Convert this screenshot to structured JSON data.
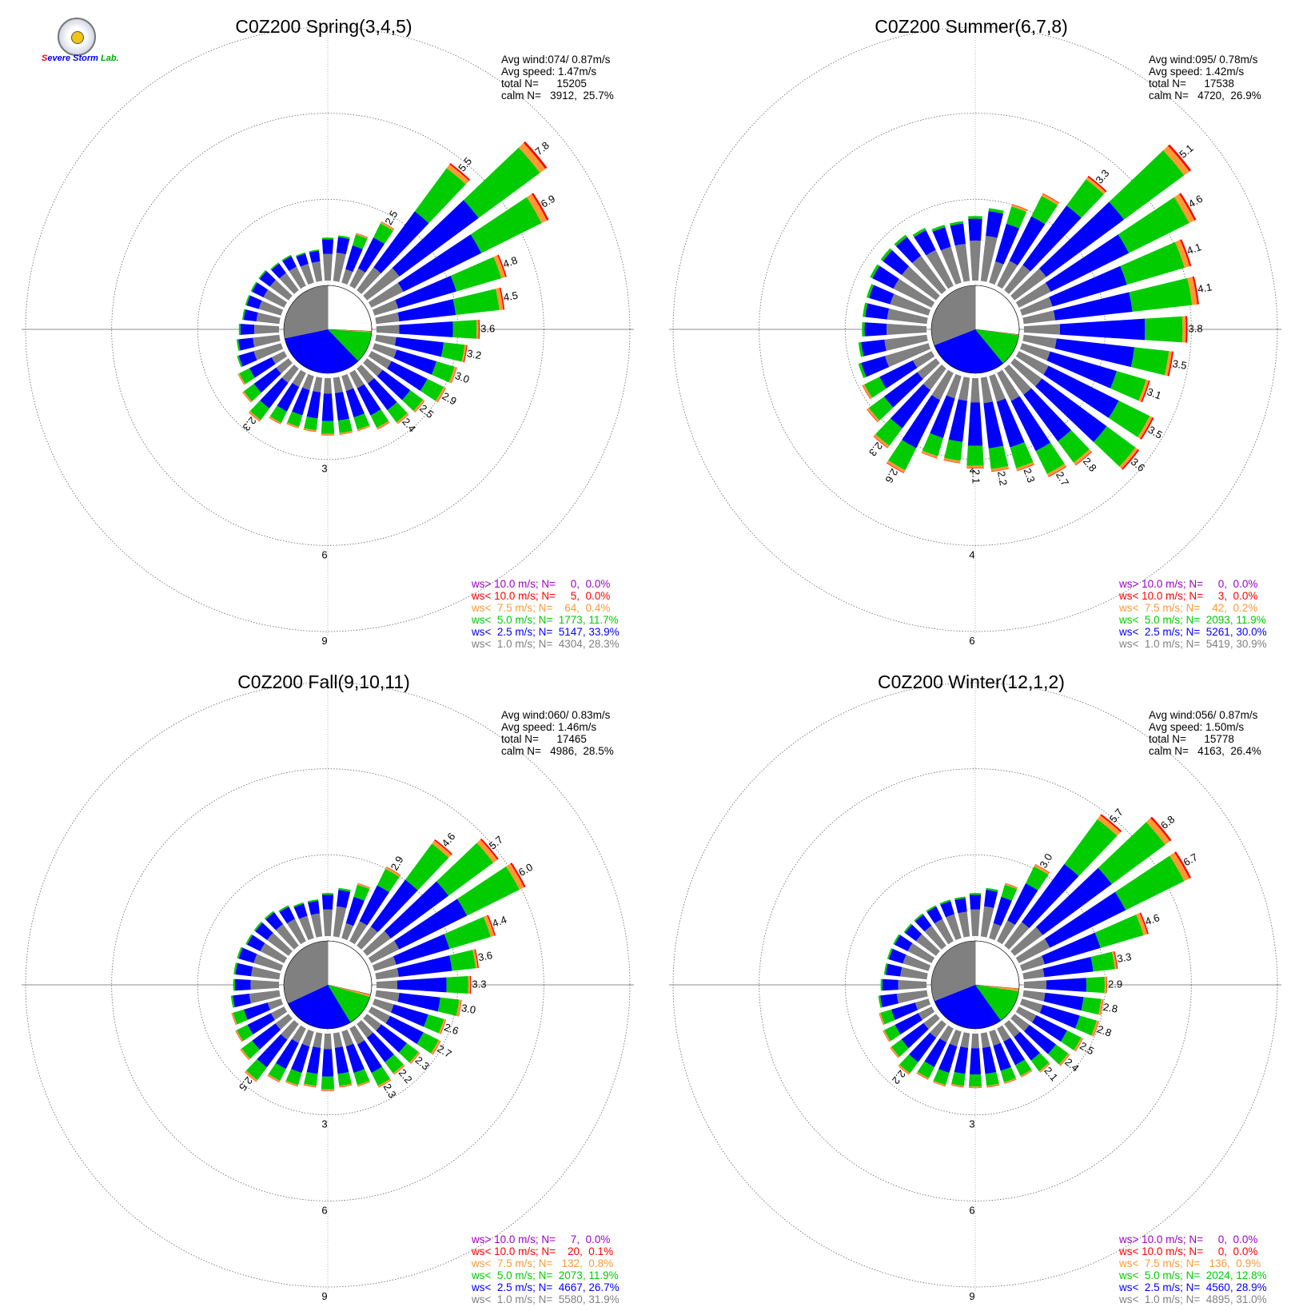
{
  "logo": {
    "text": "Severe Storm Lab."
  },
  "colors": {
    "gray": "#808080",
    "blue": "#0000ff",
    "green": "#00cc00",
    "orange": "#ff9933",
    "red": "#ff0000",
    "purple": "#a000c8",
    "calm": "#ffffff"
  },
  "chart_data": [
    {
      "type": "wind-rose",
      "title": "C0Z200 Spring(3,4,5)",
      "radial_max": 9,
      "rings": [
        3,
        6,
        9
      ],
      "ring_labels": [
        "3",
        "6",
        "9"
      ],
      "stats": [
        "Avg wind:074/ 0.87m/s",
        "Avg speed: 1.47m/s",
        "total N=      15205",
        "calm N=   3912,  25.7%"
      ],
      "legend": [
        {
          "text": "ws> 10.0 m/s; N=     0,  0.0%",
          "color": "#a000c8"
        },
        {
          "text": "ws< 10.0 m/s; N=     5,  0.0%",
          "color": "#ff0000"
        },
        {
          "text": "ws<  7.5 m/s; N=    64,  0.4%",
          "color": "#ff9933"
        },
        {
          "text": "ws<  5.0 m/s; N=  1773, 11.7%",
          "color": "#00cc00"
        },
        {
          "text": "ws<  2.5 m/s; N=  5147, 33.9%",
          "color": "#0000ff"
        },
        {
          "text": "ws<  1.0 m/s; N=  4304, 28.3%",
          "color": "#808080"
        }
      ],
      "calm_pie": {
        "gray": 28.3,
        "blue": 33.9,
        "green": 11.7,
        "orange": 0.4,
        "red": 0.03,
        "white": 25.7
      },
      "directions_deg": [
        0,
        10,
        20,
        30,
        40,
        50,
        60,
        70,
        80,
        90,
        100,
        110,
        120,
        130,
        140,
        150,
        160,
        170,
        180,
        190,
        200,
        210,
        220,
        230,
        240,
        250,
        260,
        270,
        280,
        290,
        300,
        310,
        320,
        330,
        340,
        350
      ],
      "totals": [
        1.5,
        1.6,
        1.8,
        2.5,
        5.5,
        7.8,
        6.9,
        4.8,
        4.5,
        3.6,
        3.2,
        3.0,
        2.9,
        2.5,
        2.4,
        2.2,
        2.0,
        2.0,
        2.0,
        1.9,
        1.9,
        2.0,
        2.3,
        2.0,
        1.8,
        1.6,
        1.5,
        1.4,
        1.3,
        1.3,
        1.3,
        1.3,
        1.2,
        1.2,
        1.1,
        1.1
      ],
      "bar_labels": {
        "4": "5.5",
        "5": "7.8",
        "6": "6.9",
        "7": "4.8",
        "8": "4.5",
        "9": "3.6",
        "10": "3.2",
        "11": "3.0",
        "12": "2.9",
        "13": "2.5",
        "14": "2.4",
        "3": "2.5",
        "22": "2.3"
      }
    },
    {
      "type": "wind-rose",
      "title": "C0Z200 Summer(6,7,8)",
      "radial_max": 6,
      "rings": [
        2,
        4,
        6
      ],
      "ring_labels": [
        "2",
        "4",
        "6"
      ],
      "stats": [
        "Avg wind:095/ 0.78m/s",
        "Avg speed: 1.42m/s",
        "total N=      17538",
        "calm N=   4720,  26.9%"
      ],
      "legend": [
        {
          "text": "ws> 10.0 m/s; N=     0,  0.0%",
          "color": "#a000c8"
        },
        {
          "text": "ws< 10.0 m/s; N=     3,  0.0%",
          "color": "#ff0000"
        },
        {
          "text": "ws<  7.5 m/s; N=    42,  0.2%",
          "color": "#ff9933"
        },
        {
          "text": "ws<  5.0 m/s; N=  2093, 11.9%",
          "color": "#00cc00"
        },
        {
          "text": "ws<  2.5 m/s; N=  5261, 30.0%",
          "color": "#0000ff"
        },
        {
          "text": "ws<  1.0 m/s; N=  5419, 30.9%",
          "color": "#808080"
        }
      ],
      "calm_pie": {
        "gray": 30.9,
        "blue": 30.0,
        "green": 11.9,
        "orange": 0.2,
        "red": 0.02,
        "white": 26.9
      },
      "directions_deg": [
        0,
        10,
        20,
        30,
        40,
        50,
        60,
        70,
        80,
        90,
        100,
        110,
        120,
        130,
        140,
        150,
        160,
        170,
        180,
        190,
        200,
        210,
        220,
        230,
        240,
        250,
        260,
        270,
        280,
        290,
        300,
        310,
        320,
        330,
        340,
        350
      ],
      "totals": [
        1.5,
        1.7,
        1.9,
        2.4,
        3.3,
        5.1,
        4.6,
        4.1,
        4.1,
        3.8,
        3.5,
        3.1,
        3.5,
        3.6,
        2.8,
        2.7,
        2.3,
        2.2,
        2.1,
        2.0,
        2.0,
        2.6,
        2.3,
        2.0,
        1.8,
        1.7,
        1.6,
        1.5,
        1.5,
        1.5,
        1.6,
        1.6,
        1.6,
        1.5,
        1.4,
        1.4
      ],
      "bar_labels": {
        "4": "3.3",
        "5": "5.1",
        "6": "4.6",
        "7": "4.1",
        "8": "4.1",
        "9": "3.8",
        "10": "3.5",
        "11": "3.1",
        "12": "3.5",
        "13": "3.6",
        "14": "2.8",
        "15": "2.7",
        "16": "2.3",
        "17": "2.2",
        "18": "2.1",
        "21": "2.6",
        "22": "2.3"
      }
    },
    {
      "type": "wind-rose",
      "title": "C0Z200 Fall(9,10,11)",
      "radial_max": 9,
      "rings": [
        3,
        6,
        9
      ],
      "ring_labels": [
        "3",
        "6",
        "9"
      ],
      "stats": [
        "Avg wind:060/ 0.83m/s",
        "Avg speed: 1.46m/s",
        "total N=      17465",
        "calm N=   4986,  28.5%"
      ],
      "legend": [
        {
          "text": "ws> 10.0 m/s; N=     7,  0.0%",
          "color": "#a000c8"
        },
        {
          "text": "ws< 10.0 m/s; N=    20,  0.1%",
          "color": "#ff0000"
        },
        {
          "text": "ws<  7.5 m/s; N=   132,  0.8%",
          "color": "#ff9933"
        },
        {
          "text": "ws<  5.0 m/s; N=  2073, 11.9%",
          "color": "#00cc00"
        },
        {
          "text": "ws<  2.5 m/s; N=  4667, 26.7%",
          "color": "#0000ff"
        },
        {
          "text": "ws<  1.0 m/s; N=  5580, 31.9%",
          "color": "#808080"
        }
      ],
      "calm_pie": {
        "gray": 31.9,
        "blue": 26.7,
        "green": 11.9,
        "orange": 0.8,
        "red": 0.1,
        "white": 28.5
      },
      "directions_deg": [
        0,
        10,
        20,
        30,
        40,
        50,
        60,
        70,
        80,
        90,
        100,
        110,
        120,
        130,
        140,
        150,
        160,
        170,
        180,
        190,
        200,
        210,
        220,
        230,
        240,
        250,
        260,
        270,
        280,
        290,
        300,
        310,
        320,
        330,
        340,
        350
      ],
      "totals": [
        1.5,
        1.7,
        2.0,
        2.9,
        4.6,
        5.7,
        6.0,
        4.4,
        3.6,
        3.3,
        3.0,
        2.6,
        2.7,
        2.3,
        2.2,
        2.3,
        2.0,
        1.9,
        2.0,
        1.9,
        2.0,
        2.1,
        2.5,
        2.1,
        1.9,
        1.8,
        1.7,
        1.6,
        1.6,
        1.6,
        1.5,
        1.5,
        1.5,
        1.4,
        1.3,
        1.3
      ],
      "bar_labels": {
        "3": "2.9",
        "4": "4.6",
        "5": "5.7",
        "6": "6.0",
        "7": "4.4",
        "8": "3.6",
        "9": "3.3",
        "10": "3.0",
        "11": "2.6",
        "12": "2.7",
        "13": "2.3",
        "14": "2.2",
        "15": "2.3",
        "22": "2.5"
      }
    },
    {
      "type": "wind-rose",
      "title": "C0Z200 Winter(12,1,2)",
      "radial_max": 9,
      "rings": [
        3,
        6,
        9
      ],
      "ring_labels": [
        "3",
        "6",
        "9"
      ],
      "stats": [
        "Avg wind:056/ 0.87m/s",
        "Avg speed: 1.50m/s",
        "total N=      15778",
        "calm N=   4163,  26.4%"
      ],
      "legend": [
        {
          "text": "ws> 10.0 m/s; N=     0,  0.0%",
          "color": "#a000c8"
        },
        {
          "text": "ws< 10.0 m/s; N=     0,  0.0%",
          "color": "#ff0000"
        },
        {
          "text": "ws<  7.5 m/s; N=   136,  0.9%",
          "color": "#ff9933"
        },
        {
          "text": "ws<  5.0 m/s; N=  2024, 12.8%",
          "color": "#00cc00"
        },
        {
          "text": "ws<  2.5 m/s; N=  4560, 28.9%",
          "color": "#0000ff"
        },
        {
          "text": "ws<  1.0 m/s; N=  4895, 31.0%",
          "color": "#808080"
        }
      ],
      "calm_pie": {
        "gray": 31.0,
        "blue": 28.9,
        "green": 12.8,
        "orange": 0.9,
        "red": 0.02,
        "white": 26.4
      },
      "directions_deg": [
        0,
        10,
        20,
        30,
        40,
        50,
        60,
        70,
        80,
        90,
        100,
        110,
        120,
        130,
        140,
        150,
        160,
        170,
        180,
        190,
        200,
        210,
        220,
        230,
        240,
        250,
        260,
        270,
        280,
        290,
        300,
        310,
        320,
        330,
        340,
        350
      ],
      "totals": [
        1.5,
        1.7,
        2.0,
        3.0,
        5.7,
        6.8,
        6.7,
        4.6,
        3.3,
        2.9,
        2.8,
        2.8,
        2.5,
        2.4,
        2.1,
        1.9,
        1.9,
        1.9,
        1.9,
        1.9,
        2.0,
        2.0,
        2.2,
        2.0,
        1.9,
        1.8,
        1.7,
        1.6,
        1.5,
        1.5,
        1.5,
        1.4,
        1.4,
        1.4,
        1.4,
        1.4
      ],
      "bar_labels": {
        "3": "3.0",
        "4": "5.7",
        "5": "6.8",
        "6": "6.7",
        "7": "4.6",
        "8": "3.3",
        "9": "2.9",
        "10": "2.8",
        "11": "2.8",
        "12": "2.5",
        "13": "2.4",
        "14": "2.1",
        "22": "2.2"
      }
    }
  ]
}
